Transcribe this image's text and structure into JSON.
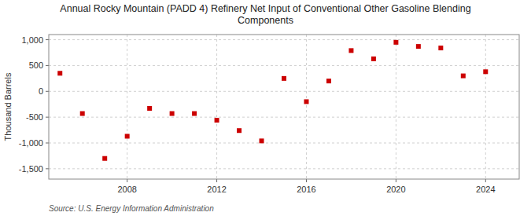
{
  "chart_data": {
    "type": "scatter",
    "title": "Annual Rocky Mountain (PADD 4) Refinery Net Input of Conventional Other Gasoline Blending\nComponents",
    "y_label": "Thousand Barrels",
    "source": "Source: U.S. Energy Information Administration",
    "x": [
      2005,
      2006,
      2007,
      2008,
      2009,
      2010,
      2011,
      2012,
      2013,
      2014,
      2015,
      2016,
      2017,
      2018,
      2019,
      2020,
      2021,
      2022,
      2023,
      2024
    ],
    "values": [
      350,
      -430,
      -1300,
      -870,
      -330,
      -430,
      -430,
      -560,
      -760,
      -960,
      250,
      -200,
      200,
      790,
      630,
      950,
      870,
      840,
      300,
      380
    ],
    "color": "#cc0000",
    "marker": "square",
    "xlim": [
      2004.5,
      2025.5
    ],
    "xticks": [
      2008,
      2012,
      2016,
      2020,
      2024
    ],
    "ylim": [
      -1700,
      1100
    ],
    "yticks": [
      {
        "value": -1500,
        "label": "-1,500"
      },
      {
        "value": -1000,
        "label": "-1,000"
      },
      -500,
      0,
      500,
      {
        "value": 1000,
        "label": "1,000"
      }
    ],
    "grid": true
  }
}
